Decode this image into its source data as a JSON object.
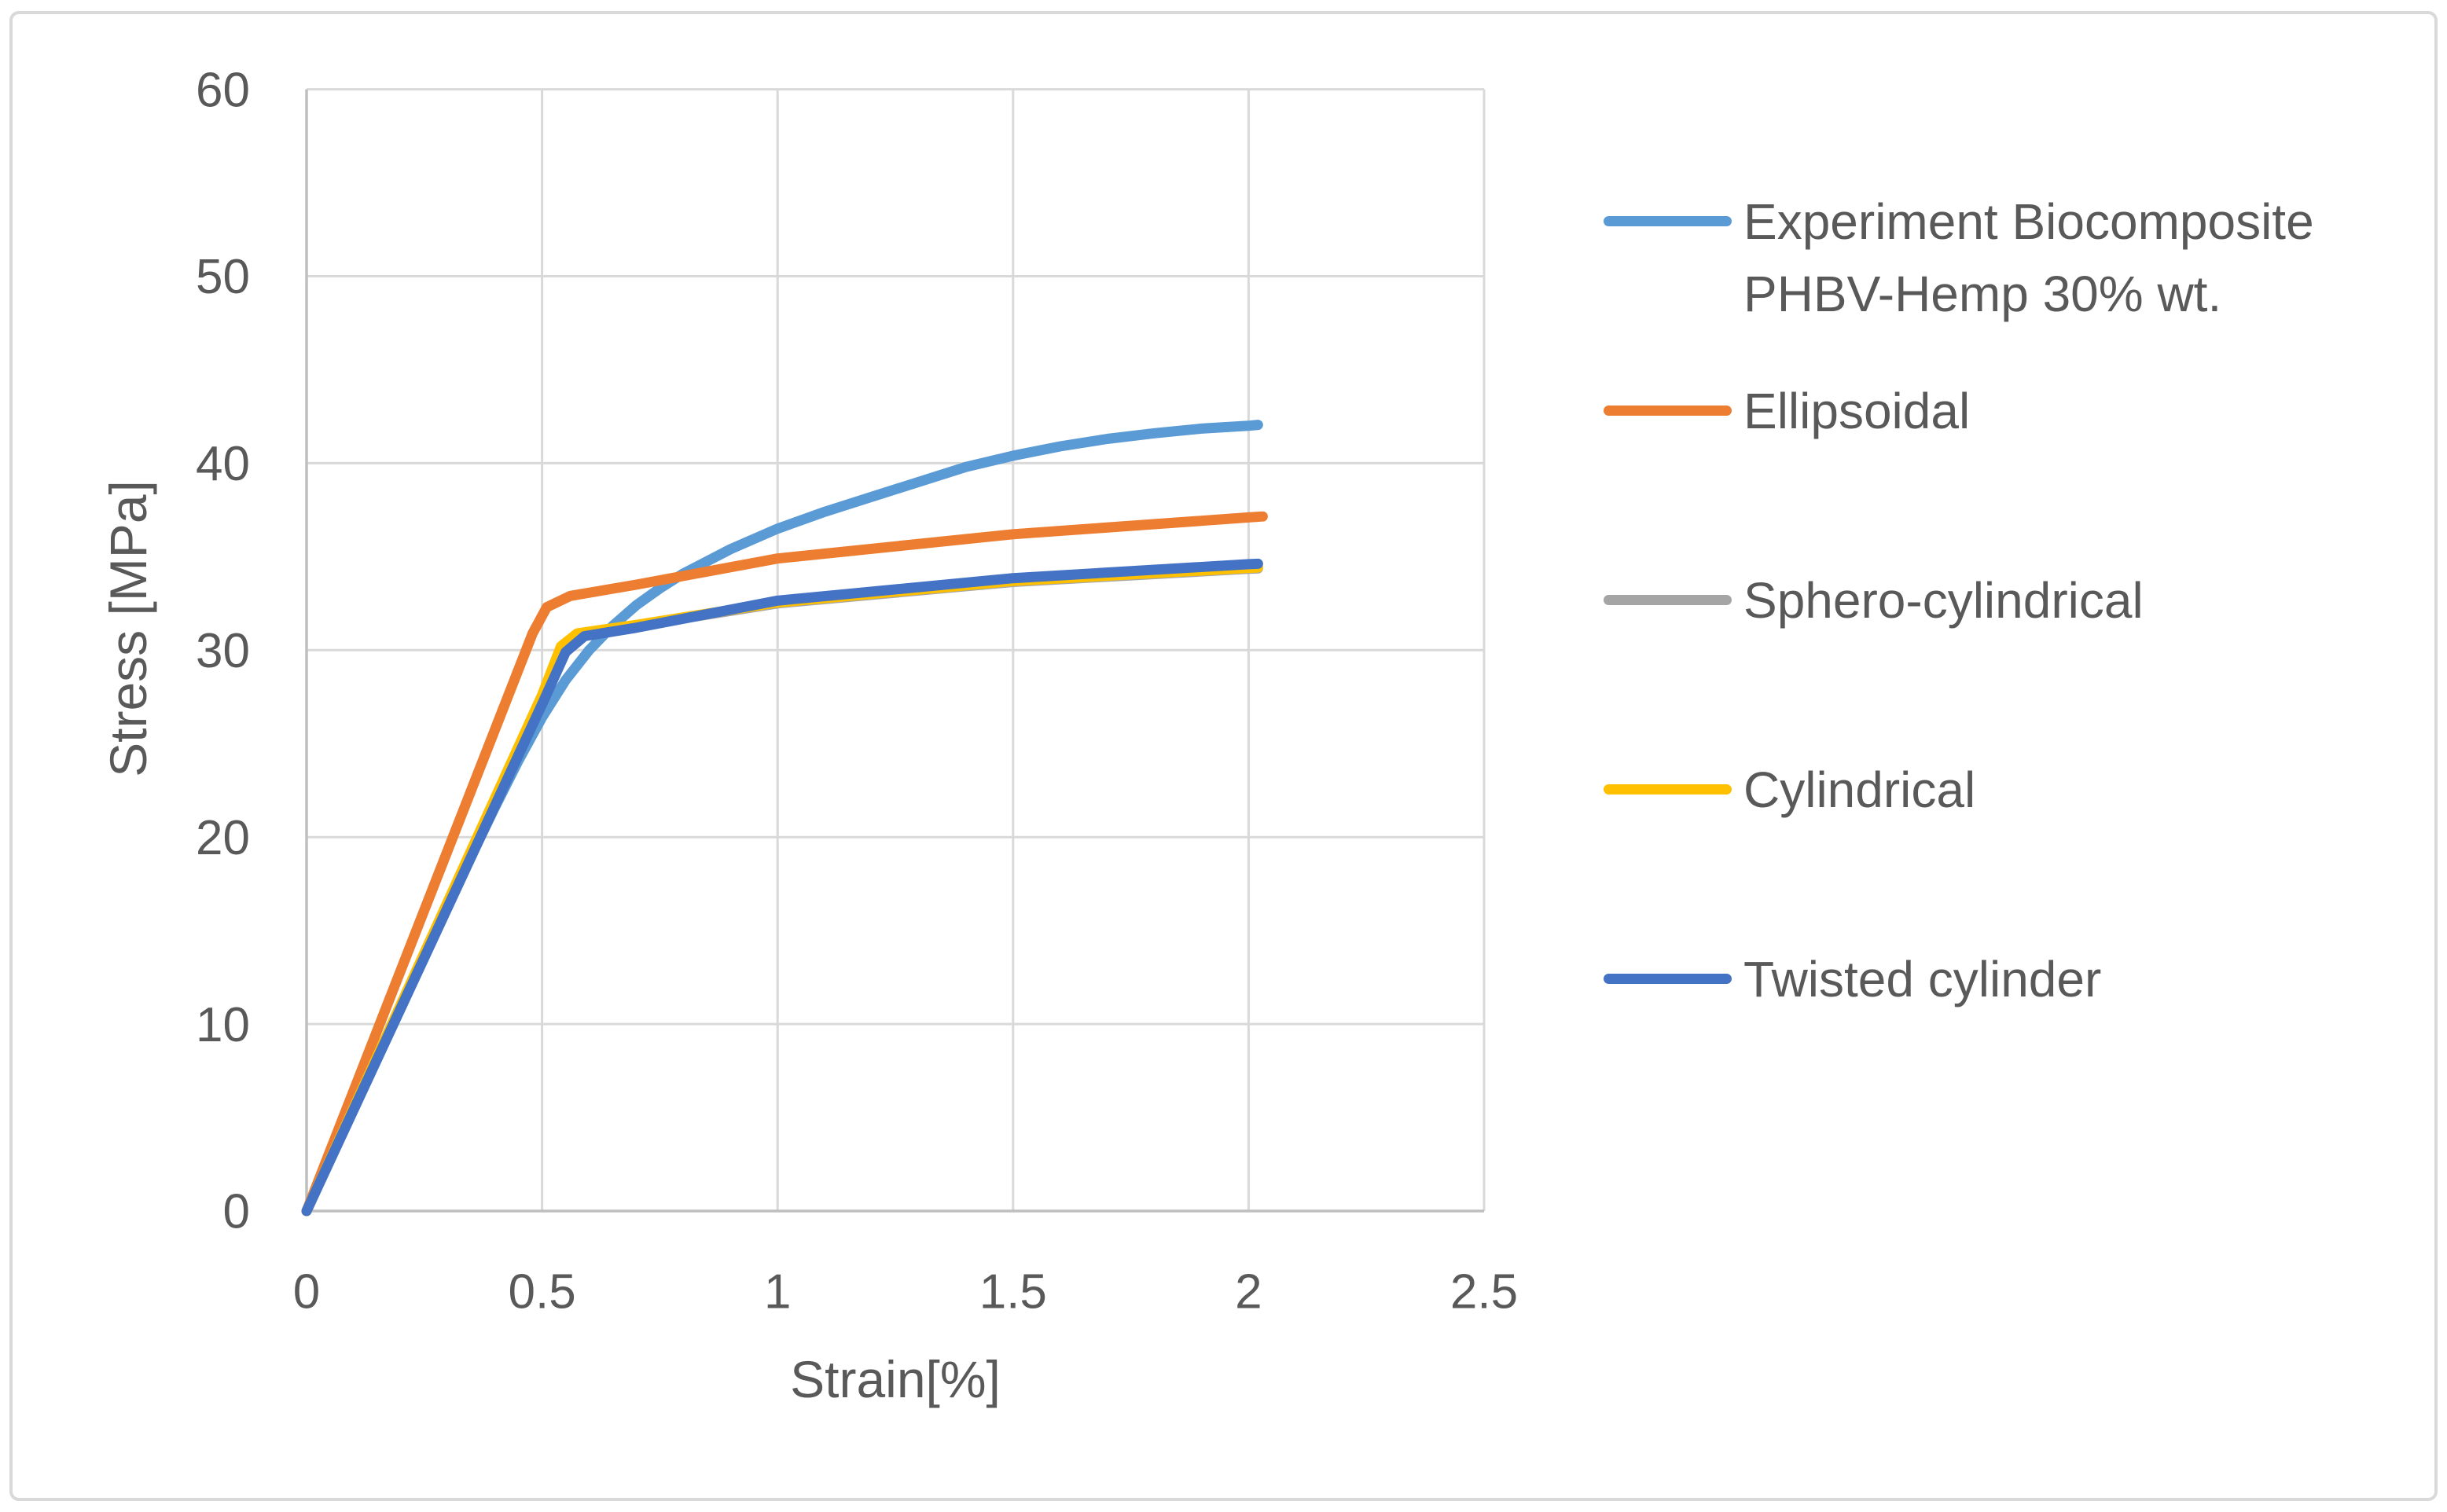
{
  "figure": {
    "background": "#FFFFFF",
    "border_color": "#D9D9D9"
  },
  "chart_data": {
    "type": "line",
    "title": "",
    "xlabel": "Strain[%]",
    "ylabel": "Stress [MPa]",
    "xlim": [
      0,
      2.5
    ],
    "ylim": [
      0,
      60
    ],
    "grid": true,
    "legend_position": "right",
    "gridline_color": "#D9D9D9",
    "axis_color": "#BFBFBF",
    "tick_label_color": "#595959",
    "x_tick_values": [
      0,
      0.5,
      1,
      1.5,
      2,
      2.5
    ],
    "x_tick_labels": [
      "0",
      "0.5",
      "1",
      "1.5",
      "2",
      "2.5"
    ],
    "y_tick_values": [
      0,
      10,
      20,
      30,
      40,
      50,
      60
    ],
    "y_tick_labels": [
      "0",
      "10",
      "20",
      "30",
      "40",
      "50",
      "60"
    ],
    "series": [
      {
        "name": "Experiment Biocomposite PHBV-Hemp 30% wt.",
        "color": "#5B9BD5",
        "points": [
          [
            0,
            0
          ],
          [
            0.1,
            5.5
          ],
          [
            0.2,
            11.0
          ],
          [
            0.3,
            16.4
          ],
          [
            0.4,
            21.6
          ],
          [
            0.45,
            24.1
          ],
          [
            0.5,
            26.4
          ],
          [
            0.55,
            28.4
          ],
          [
            0.6,
            30.0
          ],
          [
            0.65,
            31.3
          ],
          [
            0.7,
            32.4
          ],
          [
            0.75,
            33.3
          ],
          [
            0.8,
            34.1
          ],
          [
            0.9,
            35.4
          ],
          [
            1.0,
            36.5
          ],
          [
            1.1,
            37.4
          ],
          [
            1.2,
            38.2
          ],
          [
            1.3,
            39.0
          ],
          [
            1.4,
            39.8
          ],
          [
            1.5,
            40.4
          ],
          [
            1.6,
            40.9
          ],
          [
            1.7,
            41.3
          ],
          [
            1.8,
            41.6
          ],
          [
            1.9,
            41.85
          ],
          [
            2.0,
            42.0
          ],
          [
            2.02,
            42.05
          ]
        ]
      },
      {
        "name": "Ellipsoidal",
        "color": "#ED7D31",
        "points": [
          [
            0,
            0
          ],
          [
            0.48,
            30.9
          ],
          [
            0.51,
            32.3
          ],
          [
            0.56,
            32.9
          ],
          [
            0.7,
            33.5
          ],
          [
            1.0,
            34.9
          ],
          [
            1.5,
            36.2
          ],
          [
            2.0,
            37.1
          ],
          [
            2.03,
            37.15
          ]
        ]
      },
      {
        "name": "Sphero-cylindrical",
        "color": "#A5A5A5",
        "points": [
          [
            0,
            0
          ],
          [
            0.5,
            27.4
          ],
          [
            0.545,
            30.1
          ],
          [
            0.58,
            30.85
          ],
          [
            0.7,
            31.3
          ],
          [
            1.0,
            32.5
          ],
          [
            1.5,
            33.65
          ],
          [
            2.0,
            34.35
          ],
          [
            2.02,
            34.37
          ]
        ]
      },
      {
        "name": "Cylindrical",
        "color": "#FFC000",
        "points": [
          [
            0,
            0
          ],
          [
            0.5,
            27.6
          ],
          [
            0.54,
            30.2
          ],
          [
            0.575,
            30.9
          ],
          [
            0.7,
            31.35
          ],
          [
            1.0,
            32.55
          ],
          [
            1.5,
            33.7
          ],
          [
            2.0,
            34.4
          ],
          [
            2.02,
            34.42
          ]
        ]
      },
      {
        "name": "Twisted cylinder",
        "color": "#4472C4",
        "points": [
          [
            0,
            0
          ],
          [
            0.5,
            27.1
          ],
          [
            0.55,
            29.9
          ],
          [
            0.59,
            30.75
          ],
          [
            0.7,
            31.2
          ],
          [
            1.0,
            32.65
          ],
          [
            1.5,
            33.85
          ],
          [
            2.0,
            34.6
          ],
          [
            2.02,
            34.62
          ]
        ]
      }
    ],
    "legend": {
      "items": [
        {
          "lines": [
            "Experiment Biocomposite",
            "PHBV-Hemp 30% wt."
          ]
        },
        {
          "lines": [
            "Ellipsoidal"
          ]
        },
        {
          "lines": [
            "Sphero-cylindrical"
          ]
        },
        {
          "lines": [
            "Cylindrical"
          ]
        },
        {
          "lines": [
            "Twisted cylinder"
          ]
        }
      ]
    }
  }
}
